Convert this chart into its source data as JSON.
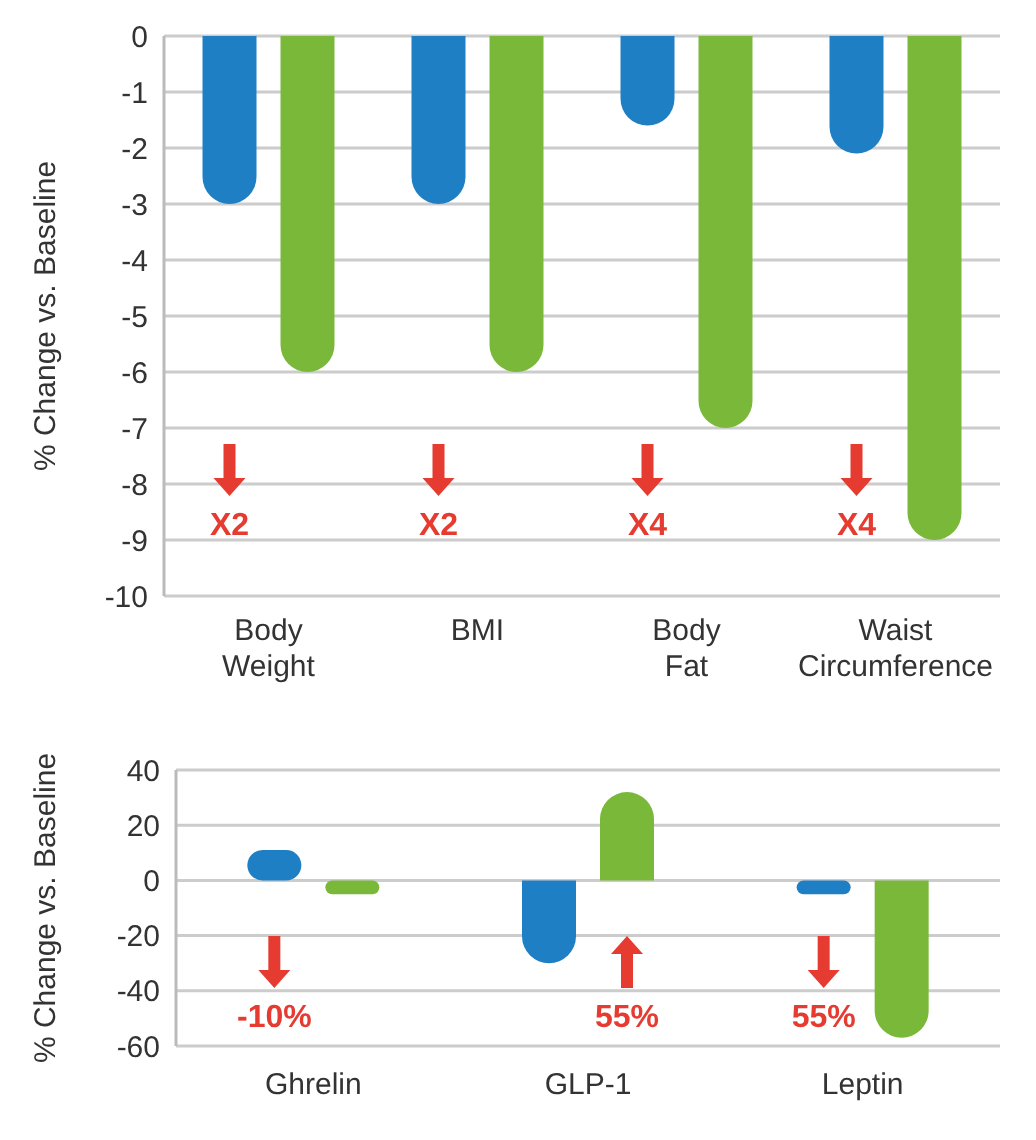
{
  "chart_data": [
    {
      "type": "bar",
      "ylabel": "% Change vs. Baseline",
      "categories": [
        "Body Weight",
        "BMI",
        "Body Fat",
        "Waist Circumference"
      ],
      "series": [
        {
          "color": "#1f7fc4",
          "values": [
            -3,
            -3,
            -1.6,
            -2.1
          ]
        },
        {
          "color": "#7ab83a",
          "values": [
            -6,
            -6,
            -7,
            -9
          ]
        }
      ],
      "ylim": [
        -10,
        0
      ],
      "yticks": [
        0,
        -1,
        -2,
        -3,
        -4,
        -5,
        -6,
        -7,
        -8,
        -9,
        -10
      ],
      "grid": "y",
      "annotations": [
        "X2",
        "X2",
        "X4",
        "X4"
      ]
    },
    {
      "type": "bar",
      "ylabel": "% Change vs. Baseline",
      "categories": [
        "Ghrelin",
        "GLP-1",
        "Leptin"
      ],
      "series": [
        {
          "color": "#1f7fc4",
          "values": [
            11,
            -30,
            -5
          ]
        },
        {
          "color": "#7ab83a",
          "values": [
            -5,
            32,
            -57
          ]
        }
      ],
      "ylim": [
        -60,
        40
      ],
      "yticks": [
        -60,
        -40,
        -20,
        0,
        20,
        40
      ],
      "grid": "y",
      "annotations": [
        "-10%",
        "55%",
        "55%"
      ]
    }
  ]
}
